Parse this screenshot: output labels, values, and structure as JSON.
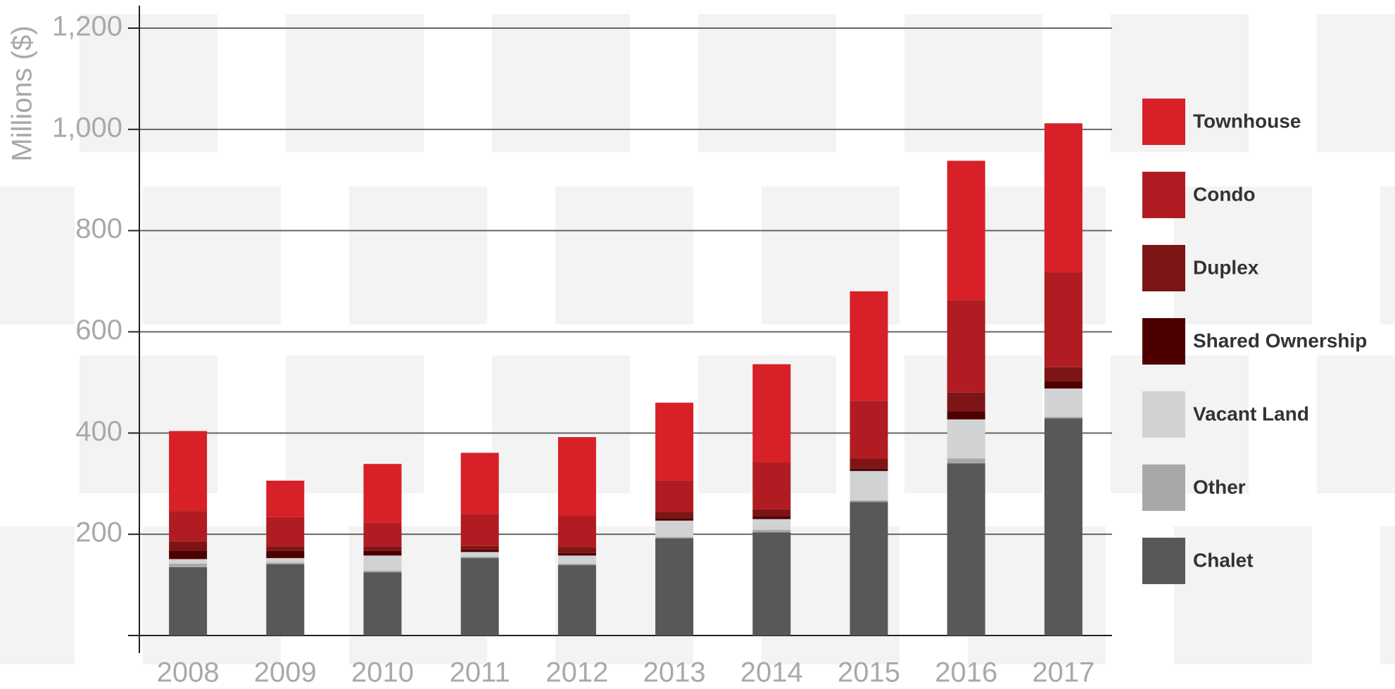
{
  "chart_data": {
    "type": "stacked-bar",
    "y_label": "Millions ($)",
    "categories": [
      "2008",
      "2009",
      "2010",
      "2011",
      "2012",
      "2013",
      "2014",
      "2015",
      "2016",
      "2017"
    ],
    "series": [
      {
        "name": "Chalet",
        "color": "#58585a",
        "values": [
          135,
          141,
          125,
          153,
          139,
          192,
          204,
          264,
          340,
          429
        ]
      },
      {
        "name": "Other",
        "color": "#a8a8aa",
        "values": [
          7,
          3,
          3,
          3,
          3,
          3,
          5,
          3,
          10,
          3
        ]
      },
      {
        "name": "Vacant Land",
        "color": "#d1d2d4",
        "values": [
          9,
          9,
          30,
          9,
          16,
          32,
          21,
          58,
          77,
          56
        ]
      },
      {
        "name": "Shared Ownership",
        "color": "#4e0000",
        "values": [
          17,
          14,
          9,
          5,
          5,
          5,
          5,
          5,
          16,
          14
        ]
      },
      {
        "name": "Duplex",
        "color": "#7d1416",
        "values": [
          18,
          9,
          9,
          7,
          12,
          12,
          14,
          19,
          37,
          28
        ]
      },
      {
        "name": "Condo",
        "color": "#b01c21",
        "values": [
          60,
          58,
          47,
          63,
          62,
          63,
          93,
          115,
          183,
          188
        ]
      },
      {
        "name": "Townhouse",
        "color": "#d72027",
        "values": [
          158,
          72,
          116,
          121,
          155,
          153,
          194,
          216,
          275,
          294
        ]
      }
    ],
    "ylim": [
      0,
      1200
    ],
    "yticks": [
      200,
      400,
      600,
      800,
      {
        "value": 1000,
        "label": "1,000"
      },
      {
        "value": 1200,
        "label": "1,200"
      }
    ],
    "grid": true
  }
}
